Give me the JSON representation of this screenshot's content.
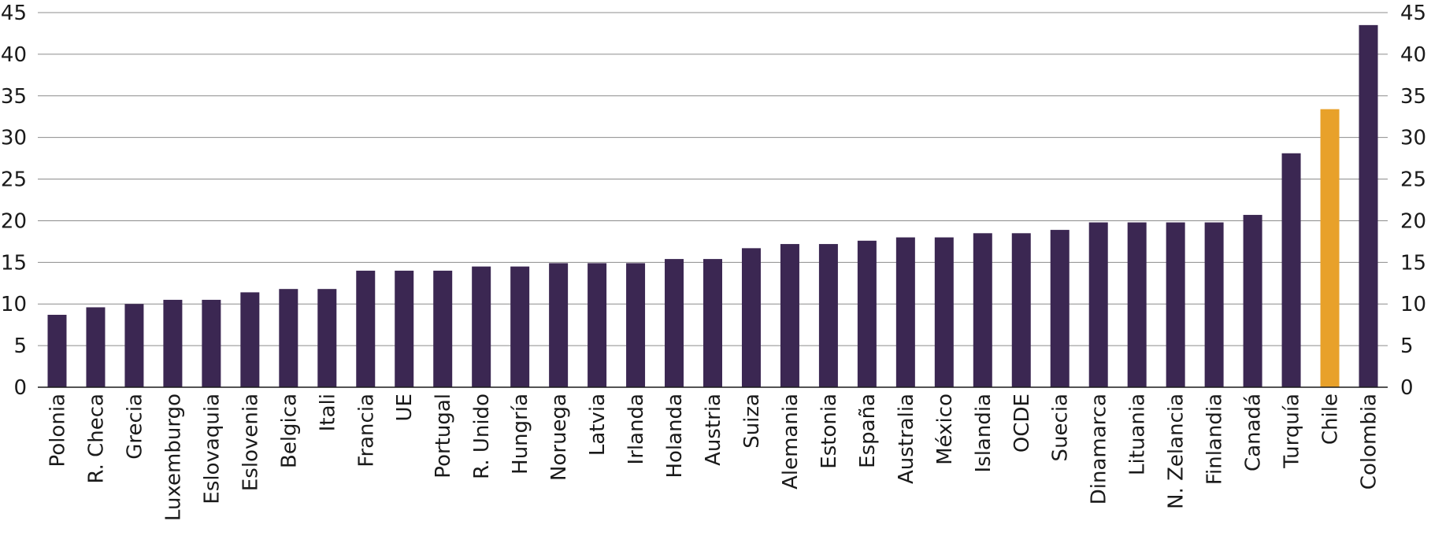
{
  "chart_data": {
    "type": "bar",
    "title": "",
    "xlabel": "",
    "ylabel": "",
    "ylim": [
      0,
      45
    ],
    "yticks": [
      0,
      5,
      10,
      15,
      20,
      25,
      30,
      35,
      40,
      45
    ],
    "grid": true,
    "legend": "none",
    "colors": {
      "default": "#3b2752",
      "highlight": "#e8a12a"
    },
    "highlight": [
      "Chile"
    ],
    "categories": [
      "Polonia",
      "R. Checa",
      "Grecia",
      "Luxemburgo",
      "Eslovaquia",
      "Eslovenia",
      "Belgica",
      "Itali",
      "Francia",
      "UE",
      "Portugal",
      "R. Unido",
      "Hungría",
      "Noruega",
      "Latvia",
      "Irlanda",
      "Holanda",
      "Austria",
      "Suiza",
      "Alemania",
      "Estonia",
      "España",
      "Australia",
      "México",
      "Islandia",
      "OCDE",
      "Suecia",
      "Dinamarca",
      "Lituania",
      "N. Zelancia",
      "Finlandia",
      "Canadá",
      "Turquía",
      "Chile",
      "Colombia"
    ],
    "values": [
      8.7,
      9.6,
      10.0,
      10.5,
      10.5,
      11.4,
      11.8,
      11.8,
      14.0,
      14.0,
      14.0,
      14.5,
      14.5,
      14.9,
      14.9,
      14.9,
      15.4,
      15.4,
      16.7,
      17.2,
      17.2,
      17.6,
      18.0,
      18.0,
      18.5,
      18.5,
      18.9,
      19.8,
      19.8,
      19.8,
      19.8,
      20.7,
      28.1,
      33.4,
      43.5
    ]
  }
}
